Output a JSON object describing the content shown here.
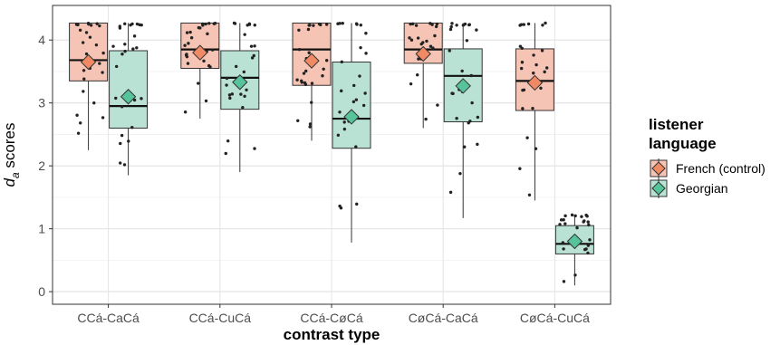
{
  "chart_data": {
    "type": "boxplot",
    "xlabel": "contrast type",
    "ylabel_main": "d",
    "ylabel_sub": "a",
    "ylabel_rest": "scores",
    "ylim": [
      -0.2,
      4.55
    ],
    "yticks": [
      0,
      1,
      2,
      3,
      4
    ],
    "grid": "on",
    "legend_position": "right",
    "legend_title": [
      "listener",
      "language"
    ],
    "categories": [
      "CCá-CaCá",
      "CCá-CuCá",
      "CCá-CøCá",
      "CøCá-CaCá",
      "CøCá-CuCá"
    ],
    "series": [
      {
        "name": "French (control)",
        "fill": "#f6c4b4",
        "marker_color": "#f08a64",
        "boxes": [
          {
            "q1": 3.35,
            "median": 3.68,
            "q3": 4.27,
            "whisker_low": 2.25,
            "whisker_high": 4.27,
            "mean": 3.65
          },
          {
            "q1": 3.55,
            "median": 3.85,
            "q3": 4.27,
            "whisker_low": 2.75,
            "whisker_high": 4.27,
            "mean": 3.8
          },
          {
            "q1": 3.28,
            "median": 3.85,
            "q3": 4.27,
            "whisker_low": 2.4,
            "whisker_high": 4.27,
            "mean": 3.67
          },
          {
            "q1": 3.63,
            "median": 3.85,
            "q3": 4.27,
            "whisker_low": 2.6,
            "whisker_high": 4.27,
            "mean": 3.78
          },
          {
            "q1": 2.88,
            "median": 3.35,
            "q3": 3.86,
            "whisker_low": 1.45,
            "whisker_high": 4.27,
            "mean": 3.32
          }
        ]
      },
      {
        "name": "Georgian",
        "fill": "#b9e2d4",
        "marker_color": "#57c39b",
        "boxes": [
          {
            "q1": 2.6,
            "median": 2.95,
            "q3": 3.83,
            "whisker_low": 1.85,
            "whisker_high": 4.27,
            "mean": 3.1
          },
          {
            "q1": 2.9,
            "median": 3.4,
            "q3": 3.83,
            "whisker_low": 1.9,
            "whisker_high": 4.27,
            "mean": 3.33
          },
          {
            "q1": 2.28,
            "median": 2.75,
            "q3": 3.65,
            "whisker_low": 0.78,
            "whisker_high": 4.27,
            "mean": 2.78
          },
          {
            "q1": 2.7,
            "median": 3.43,
            "q3": 3.86,
            "whisker_low": 1.17,
            "whisker_high": 4.27,
            "mean": 3.27
          },
          {
            "q1": 0.6,
            "median": 0.76,
            "q3": 1.05,
            "whisker_low": 0.1,
            "whisker_high": 1.22,
            "mean": 0.8
          }
        ]
      }
    ]
  }
}
